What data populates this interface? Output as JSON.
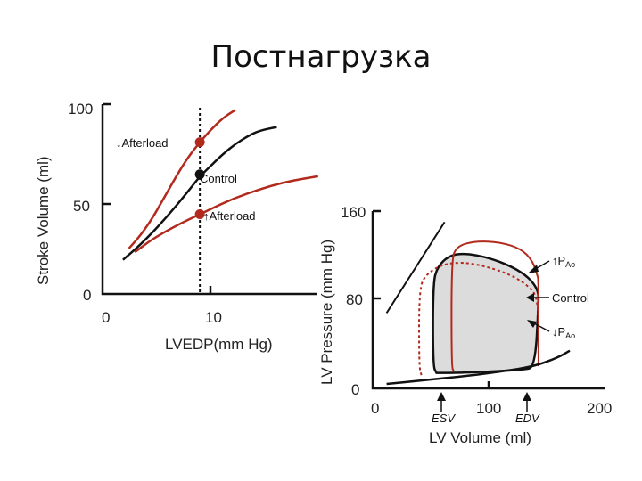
{
  "slide": {
    "title": "Постнагрузка"
  },
  "colors": {
    "red": "#b22a1e",
    "black": "#111111",
    "fill": "#dcdcdc"
  },
  "chart_data": [
    {
      "type": "line",
      "xlabel": "LVEDP(mm Hg)",
      "ylabel": "Stroke Volume (ml)",
      "xlim": [
        0,
        18
      ],
      "ylim": [
        0,
        100
      ],
      "x_ticks": [
        "0",
        "10"
      ],
      "y_ticks": [
        "100",
        "50",
        "0"
      ],
      "reference_x": 8,
      "series": [
        {
          "name": "↓Afterload",
          "color": "red",
          "points": [
            [
              2,
              24
            ],
            [
              3,
              31
            ],
            [
              4,
              40
            ],
            [
              5,
              51
            ],
            [
              6,
              62
            ],
            [
              7,
              72
            ],
            [
              8,
              80
            ],
            [
              9,
              87
            ],
            [
              10,
              93
            ],
            [
              11,
              97
            ]
          ],
          "marker": [
            8,
            80
          ]
        },
        {
          "name": "Control",
          "color": "black",
          "points": [
            [
              1.5,
              18
            ],
            [
              3,
              26
            ],
            [
              5,
              39
            ],
            [
              7,
              54
            ],
            [
              8,
              62
            ],
            [
              9,
              68
            ],
            [
              10,
              74
            ],
            [
              11,
              79
            ],
            [
              12,
              83
            ],
            [
              13,
              86
            ],
            [
              14.5,
              88
            ]
          ],
          "marker": [
            8,
            63
          ]
        },
        {
          "name": "↑Afterload",
          "color": "red",
          "points": [
            [
              2.5,
              22
            ],
            [
              4,
              29
            ],
            [
              6,
              36
            ],
            [
              8,
              42
            ],
            [
              10,
              48
            ],
            [
              12,
              53
            ],
            [
              14,
              57
            ],
            [
              16,
              60
            ],
            [
              18,
              62
            ]
          ],
          "marker": [
            8,
            42
          ]
        }
      ],
      "labels": {
        "down": "↓Afterload",
        "control": "Control",
        "up": "↑Afterload"
      }
    },
    {
      "type": "line",
      "xlabel": "LV  Volume (ml)",
      "ylabel": "LV  Pressure (mm Hg)",
      "xlim": [
        0,
        200
      ],
      "ylim": [
        0,
        160
      ],
      "x_ticks": [
        "0",
        "100",
        "200"
      ],
      "y_ticks": [
        "160",
        "80",
        "0"
      ],
      "markers": {
        "esv": "ESV",
        "edv": "EDV"
      },
      "labels": {
        "up": "↑P",
        "up_sub": "Ao",
        "control": "Control",
        "down": "↓P",
        "down_sub": "Ao"
      },
      "espvr": [
        [
          12,
          68
        ],
        [
          62,
          150
        ]
      ],
      "edpvr": [
        [
          12,
          4
        ],
        [
          40,
          7
        ],
        [
          80,
          11
        ],
        [
          110,
          15
        ],
        [
          140,
          20
        ],
        [
          160,
          28
        ],
        [
          170,
          34
        ]
      ],
      "loops": [
        {
          "name": "Control",
          "color": "black",
          "filled": true,
          "points": [
            [
              55,
              14
            ],
            [
              52,
              20
            ],
            [
              52,
              95
            ],
            [
              56,
              110
            ],
            [
              66,
              120
            ],
            [
              80,
              122
            ],
            [
              100,
              118
            ],
            [
              120,
              110
            ],
            [
              135,
              100
            ],
            [
              143,
              88
            ],
            [
              143,
              76
            ],
            [
              140,
              19
            ],
            [
              130,
              17
            ],
            [
              100,
              15
            ],
            [
              70,
              14
            ],
            [
              55,
              14
            ]
          ]
        },
        {
          "name": "↑PAo",
          "color": "red",
          "points": [
            [
              70,
              15
            ],
            [
              68,
              20
            ],
            [
              68,
              115
            ],
            [
              72,
              128
            ],
            [
              88,
              133
            ],
            [
              110,
              132
            ],
            [
              128,
              126
            ],
            [
              138,
              115
            ],
            [
              142,
              102
            ],
            [
              143,
              98
            ],
            [
              143,
              20
            ]
          ]
        },
        {
          "name": "↓PAo",
          "color": "red",
          "dashed": true,
          "points": [
            [
              42,
              12
            ],
            [
              40,
              20
            ],
            [
              40,
              90
            ],
            [
              46,
              103
            ],
            [
              60,
              112
            ],
            [
              78,
              114
            ],
            [
              98,
              110
            ],
            [
              118,
              103
            ],
            [
              134,
              93
            ],
            [
              143,
              81
            ],
            [
              143,
              30
            ]
          ]
        }
      ]
    }
  ]
}
